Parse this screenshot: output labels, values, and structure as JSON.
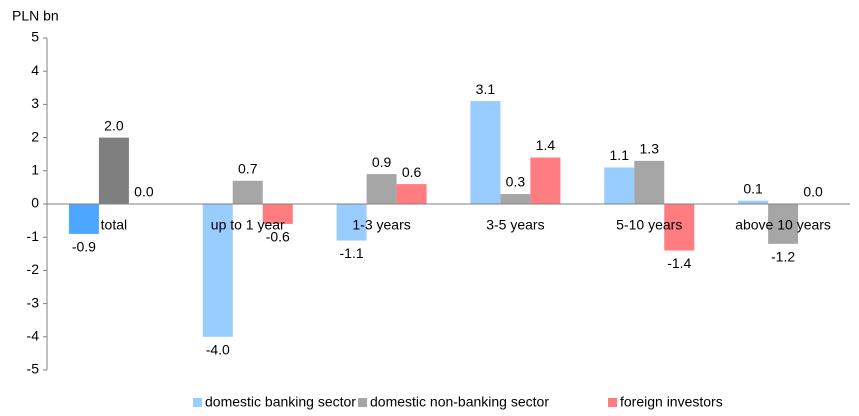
{
  "chart_data": {
    "type": "bar",
    "ylabel": "PLN bn",
    "categories": [
      "total",
      "up to 1 year",
      "1-3 years",
      "3-5 years",
      "5-10 years",
      "above 10 years"
    ],
    "series": [
      {
        "name": "domestic banking sector",
        "color": "#99ccff",
        "point_colors": [
          "#4da6ff",
          "#99ccff",
          "#99ccff",
          "#99ccff",
          "#99ccff",
          "#99ccff"
        ],
        "values": [
          -0.9,
          -4.0,
          -1.1,
          3.1,
          1.1,
          0.1
        ],
        "value_labels": [
          "-0.9",
          "-4.0",
          "-1.1",
          "3.1",
          "1.1",
          "0.1"
        ]
      },
      {
        "name": "domestic non-banking sector",
        "color": "#a6a6a6",
        "point_colors": [
          "#7f7f7f",
          "#a6a6a6",
          "#a6a6a6",
          "#a6a6a6",
          "#a6a6a6",
          "#a6a6a6"
        ],
        "values": [
          2.0,
          0.7,
          0.9,
          0.3,
          1.3,
          -1.2
        ],
        "value_labels": [
          "2.0",
          "0.7",
          "0.9",
          "0.3",
          "1.3",
          "-1.2"
        ]
      },
      {
        "name": "foreign investors",
        "color": "#ff7c80",
        "point_colors": [
          "#ff5b60",
          "#ff7c80",
          "#ff7c80",
          "#ff7c80",
          "#ff7c80",
          "#ff7c80"
        ],
        "values": [
          0.0,
          -0.6,
          0.6,
          1.4,
          -1.4,
          0.0
        ],
        "value_labels": [
          "0.0",
          "-0.6",
          "0.6",
          "1.4",
          "-1.4",
          "0.0"
        ]
      }
    ],
    "ylim": [
      -5,
      5
    ],
    "yticks": [
      -5,
      -4,
      -3,
      -2,
      -1,
      0,
      1,
      2,
      3,
      4,
      5
    ],
    "grid": false,
    "legend": "bottom"
  }
}
